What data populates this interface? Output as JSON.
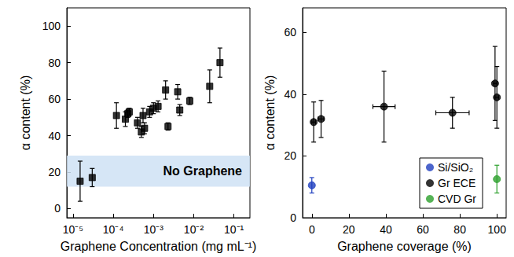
{
  "chart_data": [
    {
      "type": "scatter",
      "x_label": "Graphene Concentration (mg mL⁻¹)",
      "y_label": "α content (%)",
      "log": "x",
      "grid": false,
      "xlim": [
        7e-06,
        0.25
      ],
      "xticks": [
        {
          "value": 1e-05,
          "label": "10⁻⁵"
        },
        {
          "value": 0.0001,
          "label": "10⁻⁴"
        },
        {
          "value": 0.001,
          "label": "10⁻³"
        },
        {
          "value": 0.01,
          "label": "10⁻²"
        },
        {
          "value": 0.1,
          "label": "10⁻¹"
        }
      ],
      "ylim": [
        -5,
        110
      ],
      "yticks": [
        0,
        20,
        40,
        60,
        80,
        100
      ],
      "shaded_band": {
        "label": "No Graphene",
        "y": [
          12,
          29
        ],
        "color": "#cfe2f5"
      },
      "series": [
        {
          "color": "#000000",
          "marker": "square",
          "x": [
            1.5e-05,
            3e-05,
            0.00012,
            0.0002,
            0.00023,
            0.00025,
            0.0004,
            0.0005,
            0.00055,
            0.0006,
            0.0008,
            0.001,
            0.0013,
            0.002,
            0.0023,
            0.004,
            0.0045,
            0.008,
            0.025,
            0.045
          ],
          "values": [
            15,
            17,
            51,
            49,
            52,
            53,
            47,
            42,
            51,
            44,
            53,
            55,
            56,
            65,
            45,
            64,
            54,
            59,
            67,
            80
          ],
          "yerr": [
            11,
            5,
            7,
            4,
            2,
            2,
            3,
            3,
            4,
            3,
            3,
            3,
            3,
            5,
            2,
            4,
            3,
            2,
            9,
            8
          ]
        }
      ]
    },
    {
      "type": "scatter",
      "x_label": "Graphene coverage (%)",
      "y_label": "α content (%)",
      "grid": false,
      "legend": "lower right",
      "xlim": [
        -5,
        105
      ],
      "xticks": [
        0,
        20,
        40,
        60,
        80,
        100
      ],
      "ylim": [
        0,
        68
      ],
      "yticks": [
        0,
        20,
        40,
        60
      ],
      "series": [
        {
          "name": "Si/SiO₂",
          "color": "#1f3fbf",
          "marker": "circle",
          "x": [
            0
          ],
          "values": [
            10.5
          ],
          "yerr": [
            2.5
          ],
          "xerr": [
            0
          ]
        },
        {
          "name": "Gr ECE",
          "color": "#000000",
          "marker": "circle",
          "x": [
            1,
            5,
            39,
            76,
            99,
            100
          ],
          "values": [
            31,
            32,
            36,
            34,
            43.5,
            39
          ],
          "yerr": [
            6.5,
            6,
            11.5,
            5,
            12,
            10
          ],
          "xerr": [
            1,
            1.5,
            6,
            9,
            1,
            1
          ]
        },
        {
          "name": "CVD Gr",
          "color": "#2ca02c",
          "marker": "circle",
          "x": [
            100
          ],
          "values": [
            12.5
          ],
          "yerr": [
            4.5
          ],
          "xerr": [
            0
          ]
        }
      ]
    }
  ]
}
